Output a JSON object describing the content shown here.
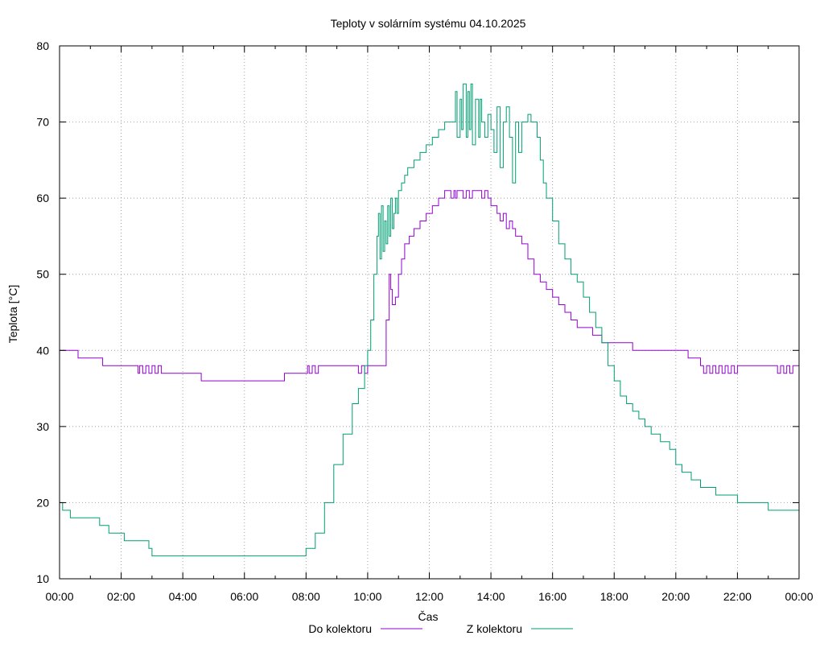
{
  "chart_data": {
    "type": "line",
    "title": "Teploty v solárním systému 04.10.2025",
    "xlabel": "Čas",
    "ylabel": "Teplota [°C]",
    "xlim": [
      0,
      24
    ],
    "ylim": [
      10,
      80
    ],
    "grid": true,
    "legend_position": "bottom-center",
    "x_ticks": [
      {
        "value": 0,
        "label": "00:00"
      },
      {
        "value": 2,
        "label": "02:00"
      },
      {
        "value": 4,
        "label": "04:00"
      },
      {
        "value": 6,
        "label": "06:00"
      },
      {
        "value": 8,
        "label": "08:00"
      },
      {
        "value": 10,
        "label": "10:00"
      },
      {
        "value": 12,
        "label": "12:00"
      },
      {
        "value": 14,
        "label": "14:00"
      },
      {
        "value": 16,
        "label": "16:00"
      },
      {
        "value": 18,
        "label": "18:00"
      },
      {
        "value": 20,
        "label": "20:00"
      },
      {
        "value": 22,
        "label": "22:00"
      },
      {
        "value": 24,
        "label": "00:00"
      }
    ],
    "y_ticks": [
      {
        "value": 10,
        "label": "10"
      },
      {
        "value": 20,
        "label": "20"
      },
      {
        "value": 30,
        "label": "30"
      },
      {
        "value": 40,
        "label": "40"
      },
      {
        "value": 50,
        "label": "50"
      },
      {
        "value": 60,
        "label": "60"
      },
      {
        "value": 70,
        "label": "70"
      },
      {
        "value": 80,
        "label": "80"
      }
    ],
    "series": [
      {
        "name": "Do kolektoru",
        "color": "#9400d3",
        "x": [
          0,
          0.55,
          0.6,
          1.4,
          2.5,
          2.55,
          2.6,
          2.7,
          2.8,
          2.9,
          3.0,
          3.1,
          3.2,
          3.3,
          3.4,
          3.5,
          4.6,
          7.3,
          8.0,
          8.05,
          8.1,
          8.2,
          8.3,
          8.4,
          8.5,
          9.6,
          9.7,
          9.8,
          9.9,
          10.0,
          10.5,
          10.6,
          10.7,
          10.75,
          10.8,
          10.9,
          11.0,
          11.1,
          11.2,
          11.35,
          11.5,
          11.7,
          11.9,
          12.1,
          12.3,
          12.5,
          12.7,
          12.8,
          12.85,
          12.9,
          13.0,
          13.1,
          13.2,
          13.3,
          13.4,
          13.5,
          13.6,
          13.7,
          13.8,
          13.9,
          14.0,
          14.1,
          14.2,
          14.3,
          14.4,
          14.5,
          14.6,
          14.7,
          14.8,
          15.0,
          15.2,
          15.4,
          15.6,
          15.8,
          16.0,
          16.2,
          16.4,
          16.6,
          16.8,
          17.0,
          17.3,
          17.6,
          18.0,
          18.6,
          20.0,
          20.4,
          20.8,
          20.9,
          21.0,
          21.1,
          21.2,
          21.3,
          21.4,
          21.5,
          21.6,
          21.7,
          21.8,
          21.9,
          22.0,
          23.2,
          23.3,
          23.4,
          23.5,
          23.6,
          23.7,
          23.8,
          24.0
        ],
        "values": [
          40,
          40,
          39,
          38,
          38,
          37,
          38,
          37,
          38,
          37,
          38,
          37,
          38,
          37,
          37,
          37,
          36,
          37,
          37,
          38,
          37,
          38,
          37,
          38,
          38,
          38,
          37,
          38,
          37,
          38,
          38,
          44,
          50,
          48,
          46,
          47,
          50,
          52,
          54,
          55,
          56,
          57,
          58,
          59,
          60,
          61,
          60,
          61,
          60,
          61,
          61,
          60,
          61,
          60,
          61,
          61,
          61,
          60,
          61,
          60,
          59,
          59,
          58,
          57,
          58,
          56,
          57,
          56,
          55,
          54,
          52,
          50,
          49,
          48,
          47,
          46,
          45,
          44,
          43,
          43,
          42,
          41,
          41,
          40,
          40,
          39,
          38,
          37,
          38,
          37,
          38,
          37,
          38,
          37,
          38,
          37,
          38,
          37,
          38,
          38,
          37,
          38,
          37,
          38,
          37,
          38,
          37
        ]
      },
      {
        "name": "Z kolektoru",
        "color": "#009e73",
        "x": [
          0,
          0.1,
          0.35,
          1.0,
          1.3,
          1.6,
          2.1,
          2.6,
          2.9,
          3.0,
          7.95,
          8.0,
          8.3,
          8.6,
          8.9,
          9.2,
          9.5,
          9.7,
          9.9,
          10.0,
          10.1,
          10.2,
          10.3,
          10.35,
          10.4,
          10.45,
          10.5,
          10.55,
          10.6,
          10.65,
          10.7,
          10.75,
          10.8,
          10.85,
          10.9,
          10.95,
          11.0,
          11.1,
          11.2,
          11.3,
          11.5,
          11.7,
          11.9,
          12.1,
          12.3,
          12.5,
          12.6,
          12.7,
          12.8,
          12.85,
          12.9,
          13.0,
          13.05,
          13.1,
          13.2,
          13.25,
          13.3,
          13.35,
          13.4,
          13.5,
          13.6,
          13.65,
          13.7,
          13.8,
          13.9,
          14.0,
          14.1,
          14.2,
          14.3,
          14.4,
          14.5,
          14.6,
          14.7,
          14.8,
          14.9,
          15.0,
          15.1,
          15.2,
          15.3,
          15.4,
          15.5,
          15.6,
          15.7,
          15.8,
          16.0,
          16.2,
          16.4,
          16.6,
          16.8,
          17.0,
          17.2,
          17.4,
          17.6,
          17.8,
          18.0,
          18.2,
          18.4,
          18.6,
          18.8,
          19.0,
          19.2,
          19.5,
          19.8,
          20.0,
          20.2,
          20.5,
          20.8,
          21.0,
          21.3,
          21.6,
          22.0,
          22.5,
          23.0,
          23.4,
          24.0
        ],
        "values": [
          20,
          19,
          18,
          18,
          17,
          16,
          15,
          15,
          14,
          13,
          13,
          14,
          16,
          20,
          25,
          29,
          33,
          35,
          38,
          40,
          44,
          50,
          55,
          58,
          52,
          59,
          53,
          57,
          54,
          59,
          55,
          60,
          56,
          58,
          60,
          58,
          61,
          62,
          63,
          64,
          65,
          66,
          67,
          68,
          69,
          70,
          70,
          70,
          70,
          74,
          68,
          73,
          69,
          75,
          68,
          74,
          69,
          75,
          67,
          73,
          68,
          73,
          70,
          68,
          71,
          69,
          66,
          72,
          64,
          70,
          72,
          68,
          62,
          70,
          66,
          70,
          70,
          71,
          70,
          70,
          68,
          65,
          62,
          60,
          57,
          54,
          52,
          50,
          49,
          47,
          45,
          43,
          41,
          38,
          36,
          34,
          33,
          32,
          31,
          30,
          29,
          28,
          27,
          25,
          24,
          23,
          22,
          22,
          21,
          21,
          20,
          20,
          19,
          19,
          19
        ]
      }
    ]
  }
}
